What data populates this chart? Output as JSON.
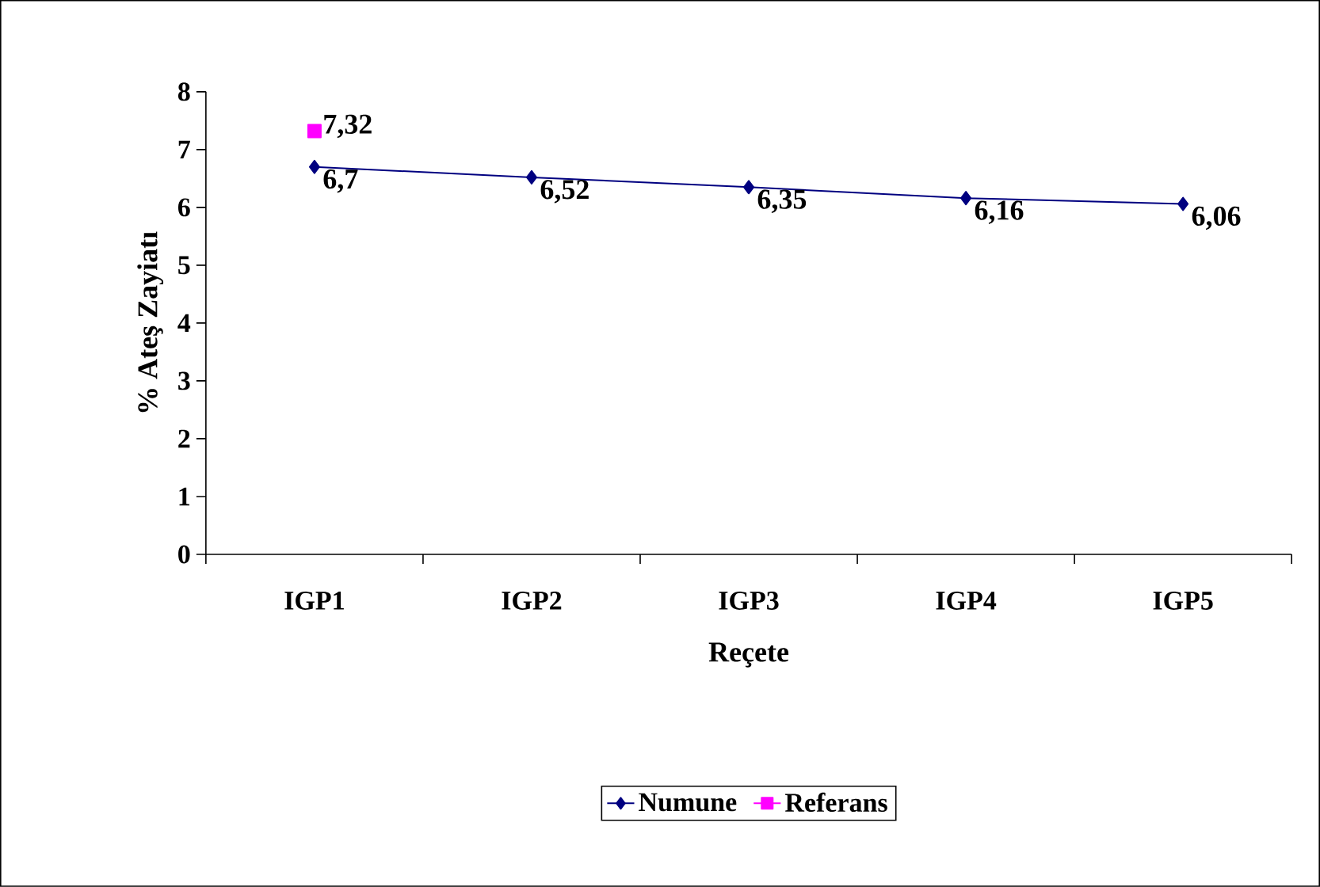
{
  "chart_data": {
    "type": "line",
    "xlabel": "Reçete",
    "ylabel": "% Ateş Zayiatı",
    "categories": [
      "IGP1",
      "IGP2",
      "IGP3",
      "IGP4",
      "IGP5"
    ],
    "series": [
      {
        "name": "Numune",
        "color": "#000080",
        "marker": "diamond",
        "values": [
          6.7,
          6.52,
          6.35,
          6.16,
          6.06
        ],
        "value_labels": [
          "6,7",
          "6,52",
          "6,35",
          "6,16",
          "6,06"
        ]
      },
      {
        "name": "Referans",
        "color": "#ff00ff",
        "marker": "square",
        "values": [
          7.32,
          null,
          null,
          null,
          null
        ],
        "value_labels": [
          "7,32",
          null,
          null,
          null,
          null
        ]
      }
    ],
    "ylim": [
      0,
      8
    ],
    "yticks": [
      0,
      1,
      2,
      3,
      4,
      5,
      6,
      7,
      8
    ],
    "grid": false,
    "legend": "bottom",
    "line_style": "solid"
  }
}
